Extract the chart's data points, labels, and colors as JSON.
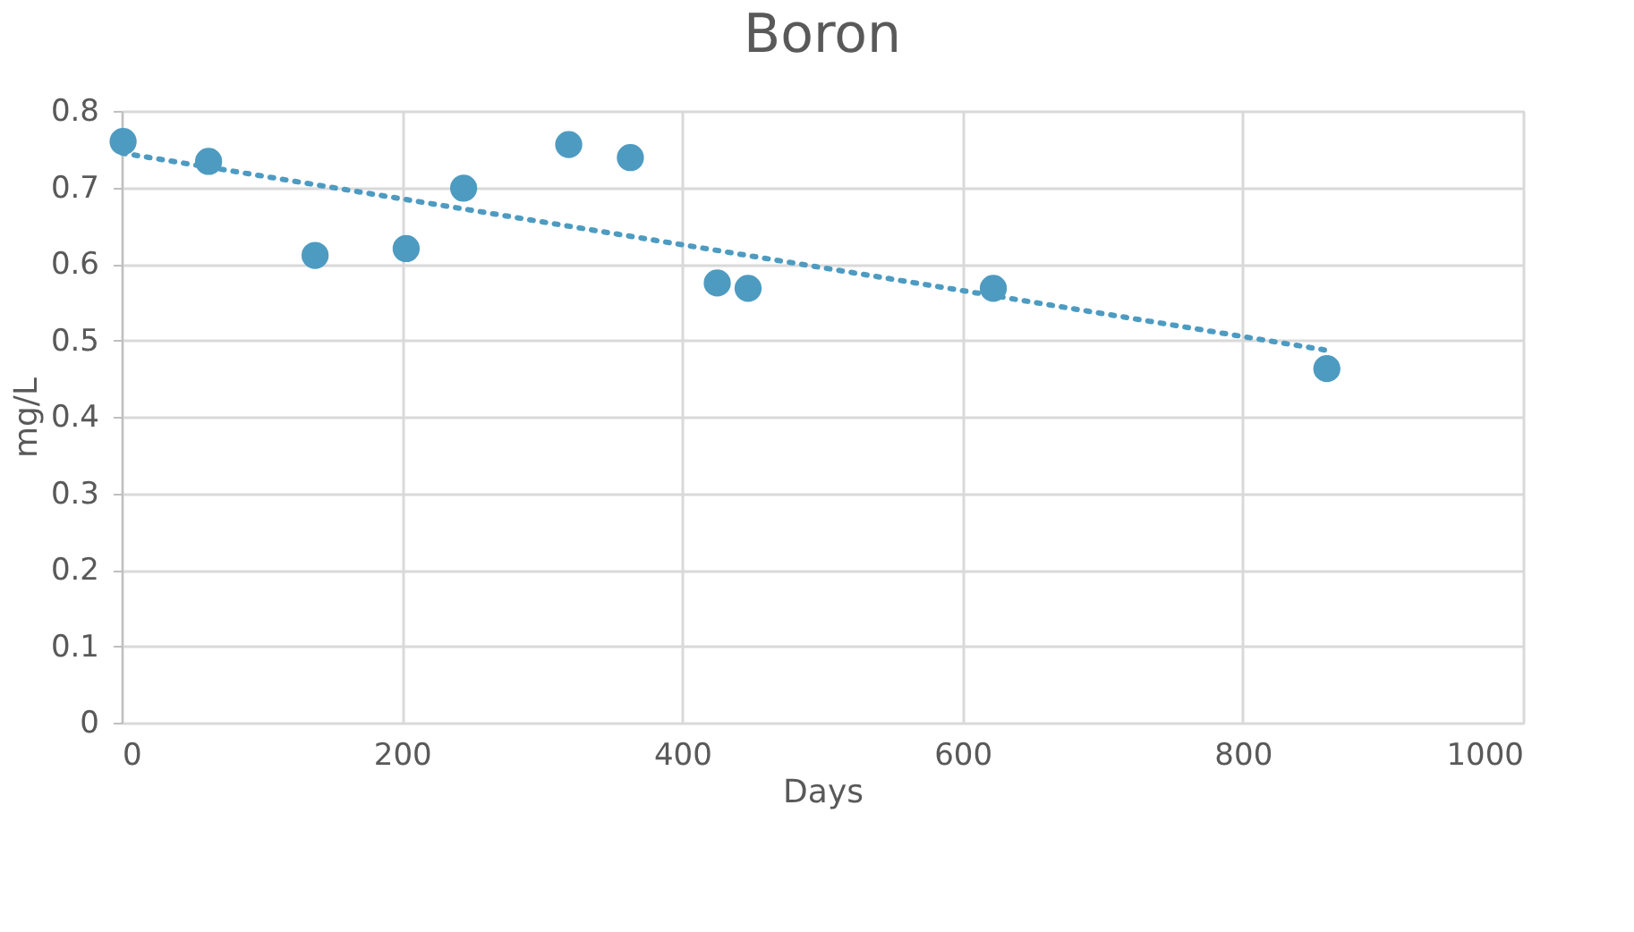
{
  "chart_data": {
    "type": "scatter",
    "title": "Boron",
    "xlabel": "Days",
    "ylabel": "mg/L",
    "xlim": [
      0,
      1000
    ],
    "xticks": [
      0,
      200,
      400,
      600,
      800,
      1000
    ],
    "ylim": [
      0,
      0.8
    ],
    "yticks": [
      0,
      0.1,
      0.2,
      0.3,
      0.4,
      0.5,
      0.6,
      0.7,
      0.8
    ],
    "grid": true,
    "series": [
      {
        "color": "#4e9bc1",
        "marker": "circle",
        "x": [
          1,
          62,
          138,
          203,
          244,
          319,
          363,
          425,
          447,
          622,
          860
        ],
        "values": [
          0.76,
          0.734,
          0.611,
          0.62,
          0.699,
          0.756,
          0.739,
          0.575,
          0.568,
          0.568,
          0.463
        ]
      },
      {
        "type": "line",
        "color": "#4e9bc1",
        "line_style": "dotted",
        "marker": "none",
        "x": [
          0,
          860
        ],
        "values": [
          0.745,
          0.487
        ]
      }
    ]
  }
}
